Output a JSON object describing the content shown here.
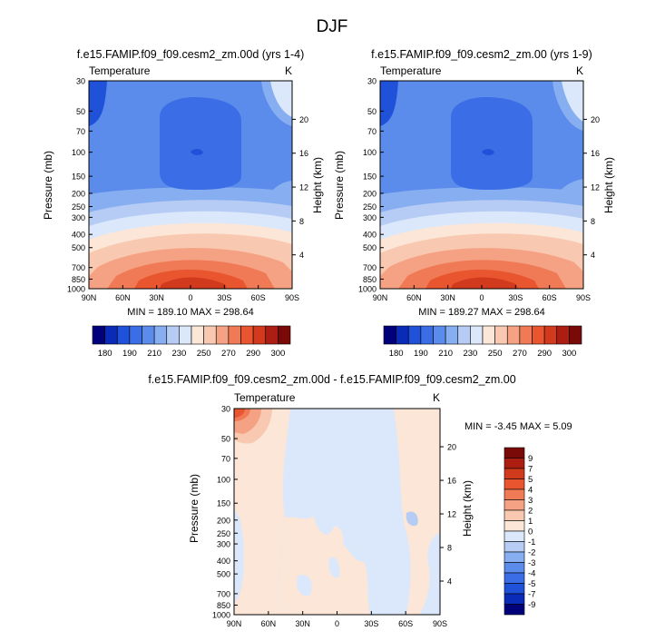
{
  "figure_title": "DJF",
  "colors": {
    "abs_scale": [
      "#00007a",
      "#0a2ab8",
      "#1f52d9",
      "#3a6de6",
      "#5b8ceb",
      "#86aef0",
      "#b6ccf5",
      "#dbe8fb",
      "#fbe6d8",
      "#f8c8b0",
      "#f4a283",
      "#f07a56",
      "#e8552f",
      "#d23a1e",
      "#ad1e12",
      "#7a0a08"
    ],
    "diff_scale": [
      "#00007a",
      "#0a2ab8",
      "#1f52d9",
      "#3a6de6",
      "#5b8ceb",
      "#86aef0",
      "#b6ccf5",
      "#dbe8fb",
      "#fbe6d8",
      "#f8c8b0",
      "#f4a283",
      "#f07a56",
      "#e8552f",
      "#d23a1e",
      "#ad1e12",
      "#7a0a08"
    ]
  },
  "chart_data": [
    {
      "type": "contour",
      "title": "f.e15.FAMIP.f09_f09.cesm2_zm.00d (yrs 1-4)",
      "field_label": "Temperature",
      "units": "K",
      "xlabel": "",
      "ylabel": "Pressure (mb)",
      "ylabel_right": "Height (km)",
      "x_ticks": [
        "90N",
        "60N",
        "30N",
        "0",
        "30S",
        "60S",
        "90S"
      ],
      "y_ticks": [
        "30",
        "50",
        "70",
        "100",
        "150",
        "200",
        "250",
        "300",
        "400",
        "500",
        "700",
        "850",
        "1000"
      ],
      "y_ticks_right": [
        "20",
        "16",
        "12",
        "8",
        "4"
      ],
      "stats_text": "MIN = 189.10   MAX = 298.64",
      "colorbar_labels": [
        "180",
        "190",
        "210",
        "230",
        "250",
        "270",
        "290",
        "300"
      ],
      "min": 189.1,
      "max": 298.64
    },
    {
      "type": "contour",
      "title": "f.e15.FAMIP.f09_f09.cesm2_zm.00 (yrs 1-9)",
      "field_label": "Temperature",
      "units": "K",
      "xlabel": "",
      "ylabel": "Pressure (mb)",
      "ylabel_right": "Height (km)",
      "x_ticks": [
        "90N",
        "60N",
        "30N",
        "0",
        "30S",
        "60S",
        "90S"
      ],
      "y_ticks": [
        "30",
        "50",
        "70",
        "100",
        "150",
        "200",
        "250",
        "300",
        "400",
        "500",
        "700",
        "850",
        "1000"
      ],
      "y_ticks_right": [
        "20",
        "16",
        "12",
        "8",
        "4"
      ],
      "stats_text": "MIN = 189.27   MAX = 298.64",
      "colorbar_labels": [
        "180",
        "190",
        "210",
        "230",
        "250",
        "270",
        "290",
        "300"
      ],
      "min": 189.27,
      "max": 298.64
    },
    {
      "type": "contour",
      "title": "f.e15.FAMIP.f09_f09.cesm2_zm.00d - f.e15.FAMIP.f09_f09.cesm2_zm.00",
      "field_label": "Temperature",
      "units": "K",
      "xlabel": "",
      "ylabel": "Pressure (mb)",
      "ylabel_right": "Height (km)",
      "x_ticks": [
        "90N",
        "60N",
        "30N",
        "0",
        "30S",
        "60S",
        "90S"
      ],
      "y_ticks": [
        "30",
        "50",
        "70",
        "100",
        "150",
        "200",
        "250",
        "300",
        "400",
        "500",
        "700",
        "850",
        "1000"
      ],
      "y_ticks_right": [
        "20",
        "16",
        "12",
        "8",
        "4"
      ],
      "stats_text": "MIN =  -3.45   MAX =   5.09",
      "colorbar_labels": [
        "9",
        "7",
        "5",
        "4",
        "3",
        "2",
        "1",
        "0",
        "-1",
        "-2",
        "-3",
        "-4",
        "-5",
        "-7",
        "-9"
      ],
      "min": -3.45,
      "max": 5.09
    }
  ]
}
